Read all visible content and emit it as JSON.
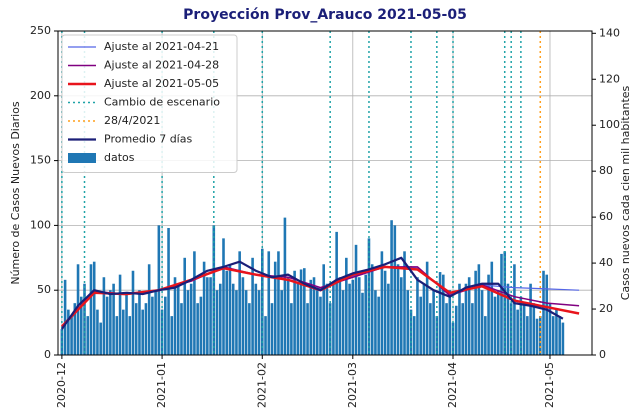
{
  "chart_data": {
    "type": "bar",
    "title": "Proyección Prov_Arauco 2021-05-05",
    "ylabel": "Número de Casos Nuevos Diarios",
    "y2label": "Casos nuevos cada cien mil habitantes",
    "xlim": [
      -1.2,
      164
    ],
    "xticks": [
      {
        "value": 0,
        "label": "2020-12"
      },
      {
        "value": 31,
        "label": "2021-01"
      },
      {
        "value": 62,
        "label": "2021-02"
      },
      {
        "value": 90,
        "label": "2021-03"
      },
      {
        "value": 121,
        "label": "2021-04"
      },
      {
        "value": 151,
        "label": "2021-05"
      }
    ],
    "ylim": [
      0,
      250
    ],
    "yticks": [
      0,
      50,
      100,
      150,
      200,
      250
    ],
    "y2lim": [
      0,
      141
    ],
    "y2ticks": [
      0,
      20,
      40,
      60,
      80,
      100,
      120,
      140
    ],
    "grid": true,
    "legend": "upper left",
    "series": [
      {
        "name": "Ajuste al 2021-04-21",
        "kind": "line",
        "color": "#5566e6",
        "width": 1.2,
        "x": [
          0,
          10,
          20,
          30,
          40,
          50,
          60,
          70,
          80,
          90,
          100,
          110,
          120,
          130,
          140,
          150,
          160
        ],
        "values": [
          22,
          49,
          47,
          50,
          57,
          67,
          62,
          58,
          51,
          61,
          68,
          67,
          47,
          54,
          52,
          51,
          50
        ]
      },
      {
        "name": "Ajuste al 2021-04-28",
        "kind": "line",
        "color": "#800080",
        "width": 1.5,
        "x": [
          0,
          10,
          20,
          30,
          40,
          50,
          60,
          70,
          80,
          90,
          100,
          110,
          120,
          130,
          140,
          150,
          160
        ],
        "values": [
          22,
          49,
          47,
          50,
          57,
          68,
          62,
          60,
          52,
          60,
          68,
          68,
          46,
          54,
          45,
          40,
          38
        ]
      },
      {
        "name": "Ajuste al 2021-05-05",
        "kind": "line",
        "color": "#e8141c",
        "width": 2.5,
        "x": [
          0,
          10,
          20,
          30,
          40,
          50,
          60,
          70,
          80,
          90,
          100,
          110,
          120,
          130,
          140,
          150,
          160
        ],
        "values": [
          22,
          48,
          47,
          50,
          58,
          67,
          62,
          58,
          50,
          62,
          68,
          66,
          48,
          53,
          42,
          37,
          32
        ]
      },
      {
        "name": "Cambio de escenario",
        "kind": "vline",
        "color": "#1fa3a8",
        "dash": "2,3",
        "x": [
          0,
          7,
          31,
          47,
          62,
          83,
          95,
          108,
          116,
          121,
          137,
          139,
          142
        ]
      },
      {
        "name": "28/4/2021",
        "kind": "vline",
        "color": "#ff9f1c",
        "dash": "2,3",
        "x": [
          148
        ]
      },
      {
        "name": "Promedio 7 días",
        "kind": "line",
        "color": "#1b1f78",
        "width": 2.2,
        "x": [
          0,
          5,
          10,
          15,
          20,
          25,
          30,
          35,
          40,
          45,
          50,
          55,
          60,
          65,
          70,
          75,
          80,
          85,
          90,
          95,
          100,
          105,
          110,
          115,
          120,
          125,
          130,
          135,
          140,
          145,
          150,
          155
        ],
        "values": [
          20,
          38,
          50,
          47,
          48,
          47,
          50,
          52,
          58,
          65,
          68,
          72,
          65,
          60,
          62,
          55,
          50,
          58,
          63,
          66,
          70,
          75,
          58,
          50,
          45,
          52,
          55,
          55,
          40,
          38,
          35,
          28
        ]
      },
      {
        "name": "datos",
        "kind": "bar",
        "color": "#1f77b4",
        "values": [
          20,
          58,
          35,
          30,
          40,
          70,
          45,
          55,
          30,
          70,
          72,
          35,
          25,
          60,
          45,
          50,
          55,
          30,
          62,
          35,
          48,
          30,
          65,
          40,
          50,
          35,
          40,
          70,
          45,
          50,
          100,
          35,
          45,
          98,
          30,
          60,
          55,
          40,
          75,
          50,
          55,
          80,
          40,
          45,
          72,
          60,
          60,
          100,
          50,
          55,
          90,
          65,
          70,
          55,
          50,
          80,
          60,
          50,
          40,
          75,
          55,
          50,
          82,
          30,
          80,
          40,
          72,
          80,
          50,
          106,
          60,
          40,
          65,
          55,
          66,
          67,
          40,
          58,
          60,
          50,
          45,
          70,
          55,
          40,
          55,
          95,
          60,
          50,
          75,
          55,
          58,
          85,
          60,
          48,
          62,
          90,
          70,
          50,
          45,
          80,
          65,
          55,
          104,
          100,
          70,
          60,
          80,
          50,
          35,
          30,
          60,
          45,
          55,
          72,
          40,
          50,
          30,
          64,
          62,
          40,
          50,
          25,
          38,
          55,
          40,
          55,
          60,
          40,
          65,
          70,
          50,
          30,
          62,
          72,
          45,
          50,
          78,
          80,
          55,
          40,
          70,
          35,
          45,
          40,
          30,
          55,
          40,
          28,
          30,
          65,
          62,
          40,
          30,
          35,
          30,
          25
        ]
      }
    ]
  }
}
